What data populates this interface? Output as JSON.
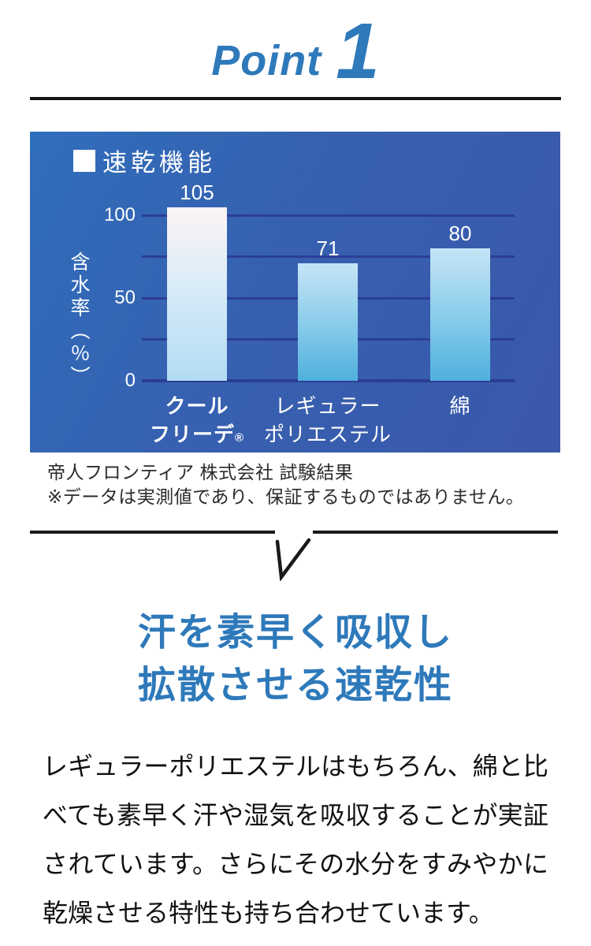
{
  "point_header": {
    "label": "Point",
    "number": "1"
  },
  "chart": {
    "legend_title": "速乾機能",
    "legend_marker": "white-square",
    "y_axis_label": "含水率（％）"
  },
  "chart_data": {
    "type": "bar",
    "title": "速乾機能",
    "categories": [
      "クールフリーデ®",
      "レギュラーポリエステル",
      "綿"
    ],
    "categories_display": [
      {
        "lines": [
          "クール",
          "フリーデ®"
        ],
        "bold": true
      },
      {
        "lines": [
          "レギュラー",
          "ポリエステル"
        ],
        "bold": false
      },
      {
        "lines": [
          "綿"
        ],
        "bold": false
      }
    ],
    "values": [
      105,
      71,
      80
    ],
    "xlabel": "",
    "ylabel": "含水率（％）",
    "ylim": [
      0,
      110
    ],
    "yticks": [
      0,
      50,
      100
    ],
    "gridline_step": 25,
    "grid": true,
    "legend_position": "top-left",
    "colors": {
      "panel_gradient": [
        "#2f6ebb",
        "#3a58aa"
      ],
      "gridline": "#2b3e94",
      "bar_first_gradient": [
        "#fdf4f6",
        "#b2dcf4"
      ],
      "bar_rest_gradient": [
        "#c5e4f6",
        "#4fb0dd"
      ],
      "text": "#ffffff"
    }
  },
  "caption": {
    "line1": "帝人フロンティア 株式会社 試験結果",
    "line2": "※データは実測値であり、保証するものではありません。"
  },
  "transition": {
    "icon": "down-check-arrow"
  },
  "heading": {
    "line1": "汗を素早く吸収し",
    "line2": "拡散させる速乾性",
    "color": "#2e79ba"
  },
  "body": {
    "text": "レギュラーポリエステルはもちろん、綿と比べても素早く汗や湿気を吸収することが実証されています。さらにその水分をすみやかに乾燥させる特性も持ち合わせています。"
  }
}
